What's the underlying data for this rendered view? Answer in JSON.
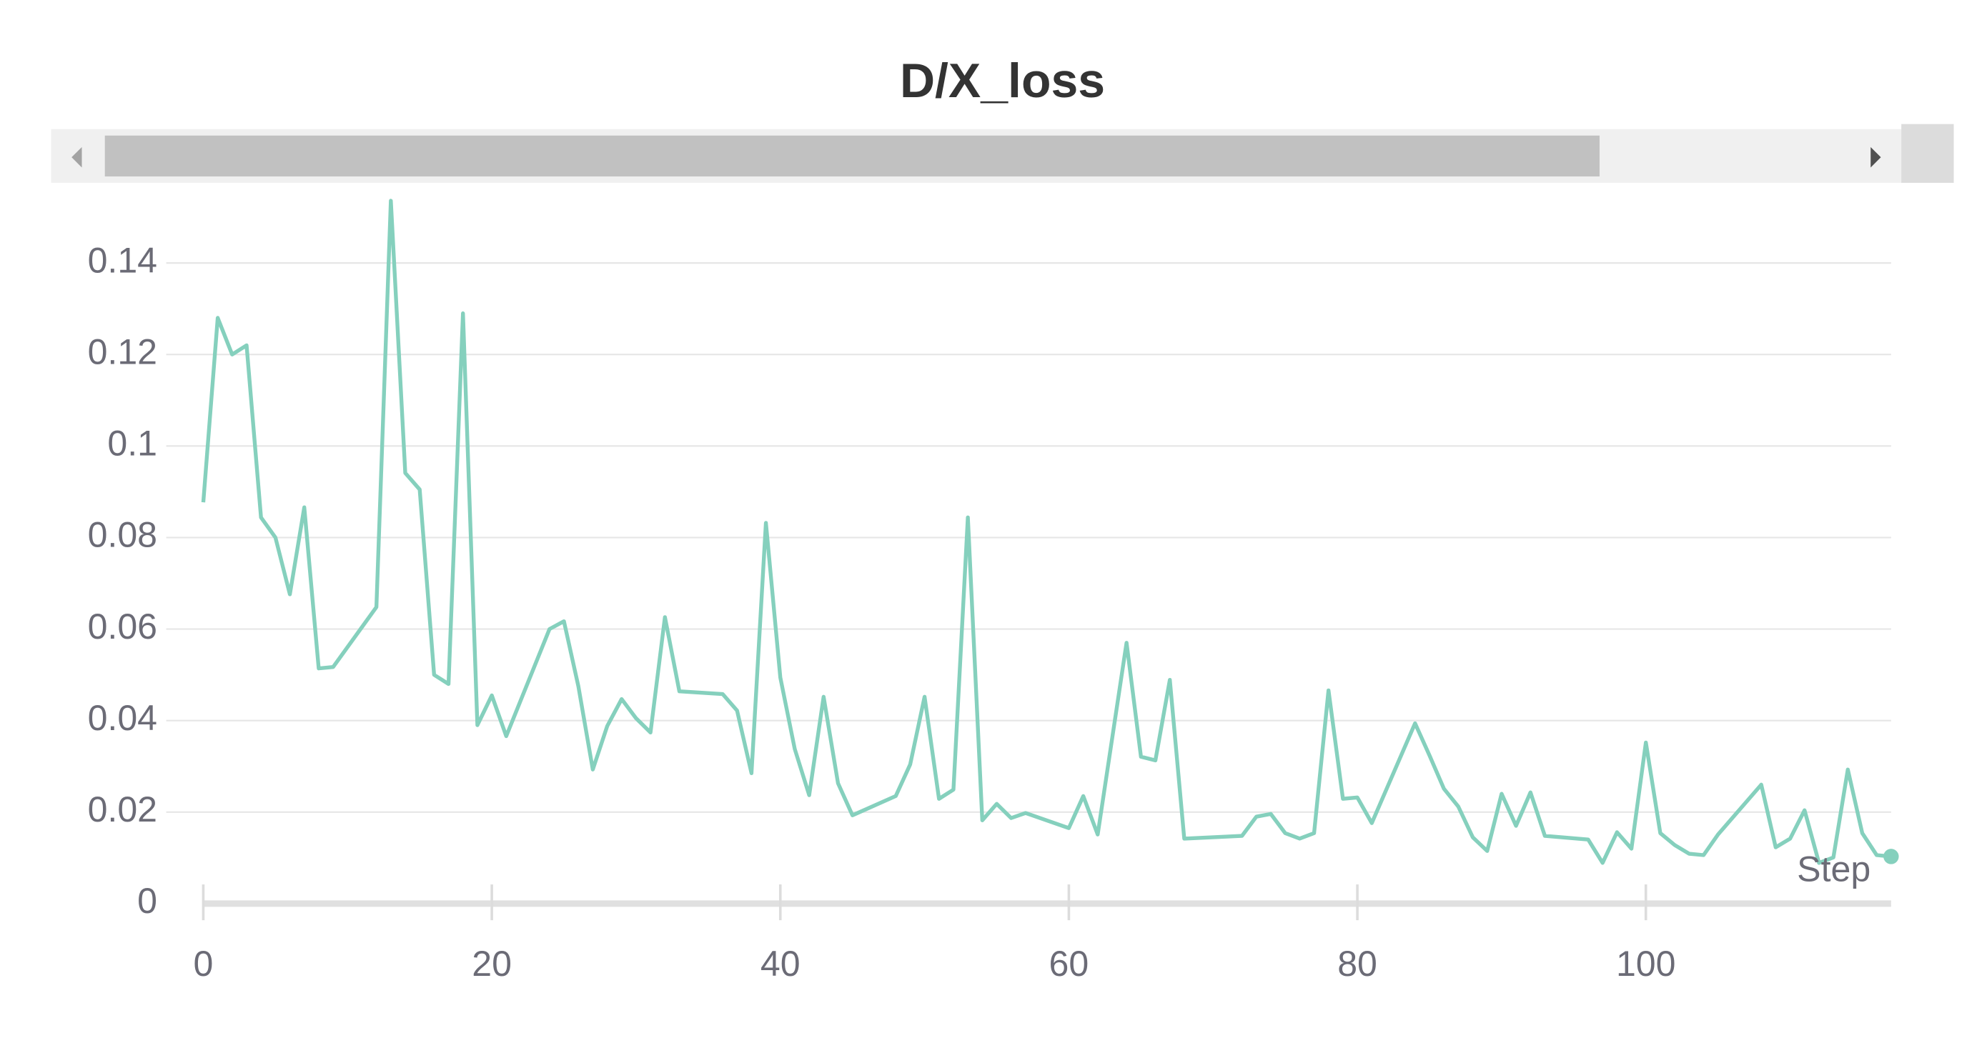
{
  "chart_data": {
    "type": "line",
    "title": "D/X_loss",
    "x_label": "Step",
    "color": "#85d0bd",
    "x": [
      0,
      1,
      2,
      3,
      4,
      5,
      6,
      7,
      8,
      9,
      12,
      13,
      14,
      15,
      16,
      17,
      18,
      19,
      20,
      21,
      24,
      25,
      26,
      27,
      28,
      29,
      30,
      31,
      32,
      33,
      36,
      37,
      38,
      39,
      40,
      41,
      42,
      43,
      44,
      45,
      48,
      49,
      50,
      51,
      52,
      53,
      54,
      55,
      56,
      57,
      60,
      61,
      62,
      64,
      65,
      66,
      67,
      68,
      72,
      73,
      74,
      75,
      76,
      77,
      78,
      79,
      80,
      81,
      84,
      85,
      86,
      87,
      88,
      89,
      90,
      91,
      92,
      93,
      96,
      97,
      98,
      99,
      100,
      101,
      102,
      103,
      104,
      105,
      108,
      109,
      110,
      111,
      112,
      113,
      114,
      115,
      116,
      117
    ],
    "values": [
      0.0877,
      0.128,
      0.12,
      0.122,
      0.0844,
      0.08,
      0.0676,
      0.0866,
      0.0514,
      0.0517,
      0.0648,
      0.1536,
      0.0941,
      0.0905,
      0.05,
      0.048,
      0.129,
      0.039,
      0.0455,
      0.0366,
      0.06,
      0.0617,
      0.0475,
      0.0293,
      0.0388,
      0.0447,
      0.0405,
      0.0374,
      0.0626,
      0.0464,
      0.0458,
      0.0422,
      0.0285,
      0.0832,
      0.0494,
      0.0338,
      0.0237,
      0.0452,
      0.0263,
      0.0193,
      0.0235,
      0.0304,
      0.0452,
      0.0229,
      0.0249,
      0.0844,
      0.0182,
      0.0218,
      0.0187,
      0.0198,
      0.0165,
      0.0235,
      0.0151,
      0.057,
      0.0321,
      0.0313,
      0.0489,
      0.0142,
      0.0148,
      0.019,
      0.0196,
      0.0154,
      0.0142,
      0.0154,
      0.0466,
      0.0229,
      0.0232,
      0.0176,
      0.0394,
      0.0324,
      0.0251,
      0.0212,
      0.0145,
      0.0115,
      0.024,
      0.017,
      0.0243,
      0.0148,
      0.014,
      0.0089,
      0.0156,
      0.012,
      0.0352,
      0.0154,
      0.0128,
      0.0109,
      0.0106,
      0.0151,
      0.026,
      0.0123,
      0.0142,
      0.0204,
      0.0089,
      0.0101,
      0.0293,
      0.0154,
      0.0106,
      0.0103
    ],
    "xlim": [
      0,
      117
    ],
    "ylim": [
      0,
      0.155
    ],
    "xticks": [
      0,
      20,
      40,
      60,
      80,
      100
    ],
    "yticks": [
      0,
      0.02,
      0.04,
      0.06,
      0.08,
      0.1,
      0.12,
      0.14
    ],
    "grid": true
  }
}
